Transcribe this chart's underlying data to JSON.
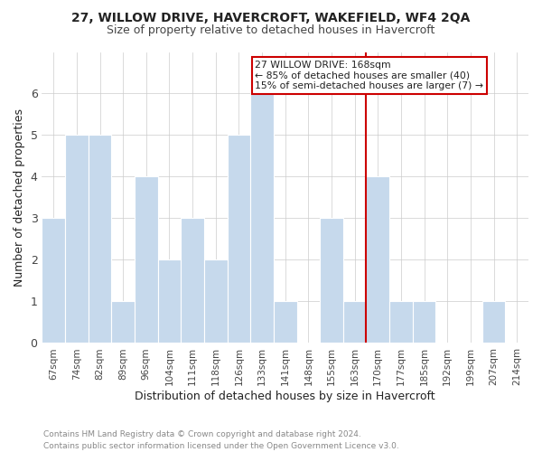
{
  "title": "27, WILLOW DRIVE, HAVERCROFT, WAKEFIELD, WF4 2QA",
  "subtitle": "Size of property relative to detached houses in Havercroft",
  "xlabel": "Distribution of detached houses by size in Havercroft",
  "ylabel": "Number of detached properties",
  "categories": [
    "67sqm",
    "74sqm",
    "82sqm",
    "89sqm",
    "96sqm",
    "104sqm",
    "111sqm",
    "118sqm",
    "126sqm",
    "133sqm",
    "141sqm",
    "148sqm",
    "155sqm",
    "163sqm",
    "170sqm",
    "177sqm",
    "185sqm",
    "192sqm",
    "199sqm",
    "207sqm",
    "214sqm"
  ],
  "values": [
    3,
    5,
    5,
    1,
    4,
    2,
    3,
    2,
    5,
    6,
    1,
    0,
    3,
    1,
    4,
    1,
    1,
    0,
    0,
    1,
    0
  ],
  "bar_color": "#c6d9ec",
  "bar_edge_color": "#ffffff",
  "grid_color": "#cccccc",
  "vline_x_index": 14,
  "vline_color": "#cc0000",
  "annotation_text": "27 WILLOW DRIVE: 168sqm\n← 85% of detached houses are smaller (40)\n15% of semi-detached houses are larger (7) →",
  "annotation_box_facecolor": "#ffffff",
  "annotation_box_edgecolor": "#cc0000",
  "ylim": [
    0,
    7
  ],
  "yticks": [
    0,
    1,
    2,
    3,
    4,
    5,
    6
  ],
  "footer_text": "Contains HM Land Registry data © Crown copyright and database right 2024.\nContains public sector information licensed under the Open Government Licence v3.0.",
  "bg_color": "#ffffff",
  "plot_bg_color": "#ffffff",
  "title_color": "#222222",
  "subtitle_color": "#444444",
  "footer_color": "#888888",
  "tick_label_color": "#444444"
}
